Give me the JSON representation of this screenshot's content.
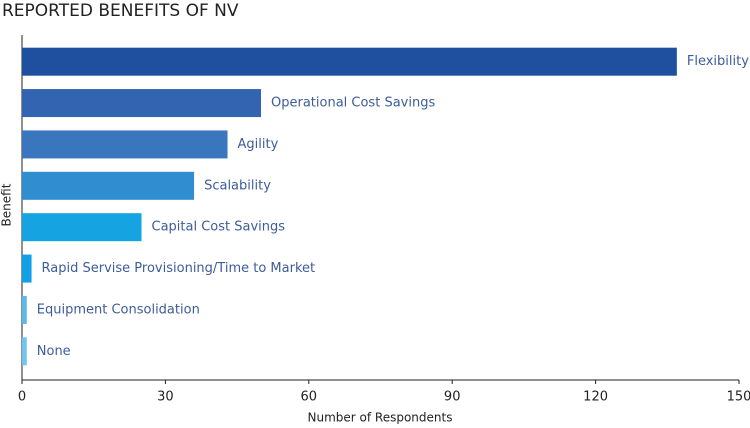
{
  "chart_data": {
    "type": "bar",
    "orientation": "horizontal",
    "title": "REPORTED BENEFITS OF NV",
    "x_label": "Number of Respondents",
    "y_label": "Benefit",
    "categories": [
      "Flexibility",
      "Operational Cost Savings",
      "Agility",
      "Scalability",
      "Capital Cost Savings",
      "Rapid Servise Provisioning/Time to Market",
      "Equipment Consolidation",
      "None"
    ],
    "values": [
      137,
      50,
      43,
      36,
      25,
      2,
      1,
      1
    ],
    "colors": [
      "#1f4f9f",
      "#3264b2",
      "#3a76be",
      "#2f8dd0",
      "#15a3e2",
      "#129fe6",
      "#5cbae8",
      "#70c6ee"
    ],
    "xlim": [
      0,
      150
    ],
    "xticks": [
      0,
      30,
      60,
      90,
      120,
      150
    ]
  }
}
